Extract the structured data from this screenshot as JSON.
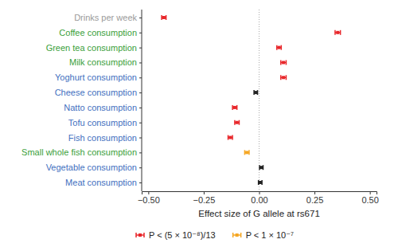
{
  "chart_data": {
    "type": "errorbar",
    "orientation": "horizontal",
    "x_label": "Effect size of G allele at rs671",
    "categories": [
      "Drinks per week",
      "Coffee consumption",
      "Green tea consumption",
      "Milk consumption",
      "Yoghurt consumption",
      "Cheese consumption",
      "Natto consumption",
      "Tofu consumption",
      "Fish consumption",
      "Small whole fish consumption",
      "Vegetable consumption",
      "Meat consumption"
    ],
    "series": [
      {
        "name": "P < (5 × 10⁻⁸)/13",
        "color": "#e8262a",
        "values": [
          -0.43,
          0.355,
          0.09,
          0.11,
          0.11,
          null,
          -0.11,
          -0.1,
          -0.13,
          null,
          null,
          null
        ],
        "errors": [
          0.01,
          0.012,
          0.01,
          0.012,
          0.012,
          null,
          0.01,
          0.01,
          0.01,
          null,
          null,
          null
        ]
      },
      {
        "name": "P < 1 × 10⁻⁷",
        "color": "#f5a623",
        "values": [
          null,
          null,
          null,
          null,
          null,
          null,
          null,
          null,
          null,
          -0.055,
          null,
          null
        ],
        "errors": [
          null,
          null,
          null,
          null,
          null,
          null,
          null,
          null,
          null,
          0.01,
          null,
          null
        ]
      },
      {
        "color": "#222222",
        "values": [
          null,
          null,
          null,
          null,
          null,
          -0.015,
          null,
          null,
          null,
          null,
          0.01,
          0.005
        ],
        "errors": [
          null,
          null,
          null,
          null,
          null,
          0.008,
          null,
          null,
          null,
          null,
          0.008,
          0.008
        ]
      }
    ],
    "xlim": [
      -0.53,
      0.53
    ],
    "xticks": [
      {
        "value": -0.5,
        "label": "−0.50"
      },
      {
        "value": -0.25,
        "label": "−0.25"
      },
      {
        "value": 0,
        "label": "0.00"
      },
      {
        "value": 0.25,
        "label": "0.25"
      },
      {
        "value": 0.5,
        "label": "0.50"
      }
    ],
    "legend": "bottom"
  }
}
